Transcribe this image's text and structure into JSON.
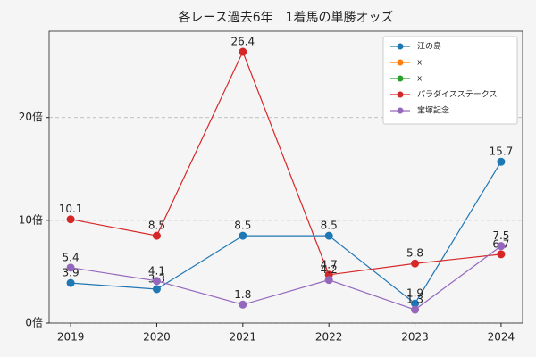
{
  "chart_data": {
    "type": "line",
    "title": "各レース過去6年　1着馬の単勝オッズ",
    "categories": [
      "2019",
      "2020",
      "2021",
      "2022",
      "2023",
      "2024"
    ],
    "series": [
      {
        "name": "江の島",
        "color": "#1f77b4",
        "values": [
          3.9,
          3.3,
          8.5,
          8.5,
          1.9,
          15.7
        ]
      },
      {
        "name": "x",
        "color": "#ff7f0e",
        "values": [
          null,
          null,
          null,
          null,
          null,
          null
        ]
      },
      {
        "name": "x",
        "color": "#2ca02c",
        "values": [
          null,
          null,
          null,
          null,
          null,
          null
        ]
      },
      {
        "name": "パラダイスステークス",
        "color": "#d62728",
        "values": [
          10.1,
          8.5,
          26.4,
          4.7,
          5.8,
          6.7
        ]
      },
      {
        "name": "宝塚記念",
        "color": "#9467bd",
        "values": [
          5.4,
          4.1,
          1.8,
          4.2,
          1.3,
          7.5
        ]
      }
    ],
    "ylim": [
      0,
      28.4
    ],
    "yticks": [
      {
        "value": 0,
        "label": "0倍"
      },
      {
        "value": 10,
        "label": "10倍"
      },
      {
        "value": 20,
        "label": "20倍"
      }
    ],
    "grid": true,
    "legend": "upper right"
  }
}
